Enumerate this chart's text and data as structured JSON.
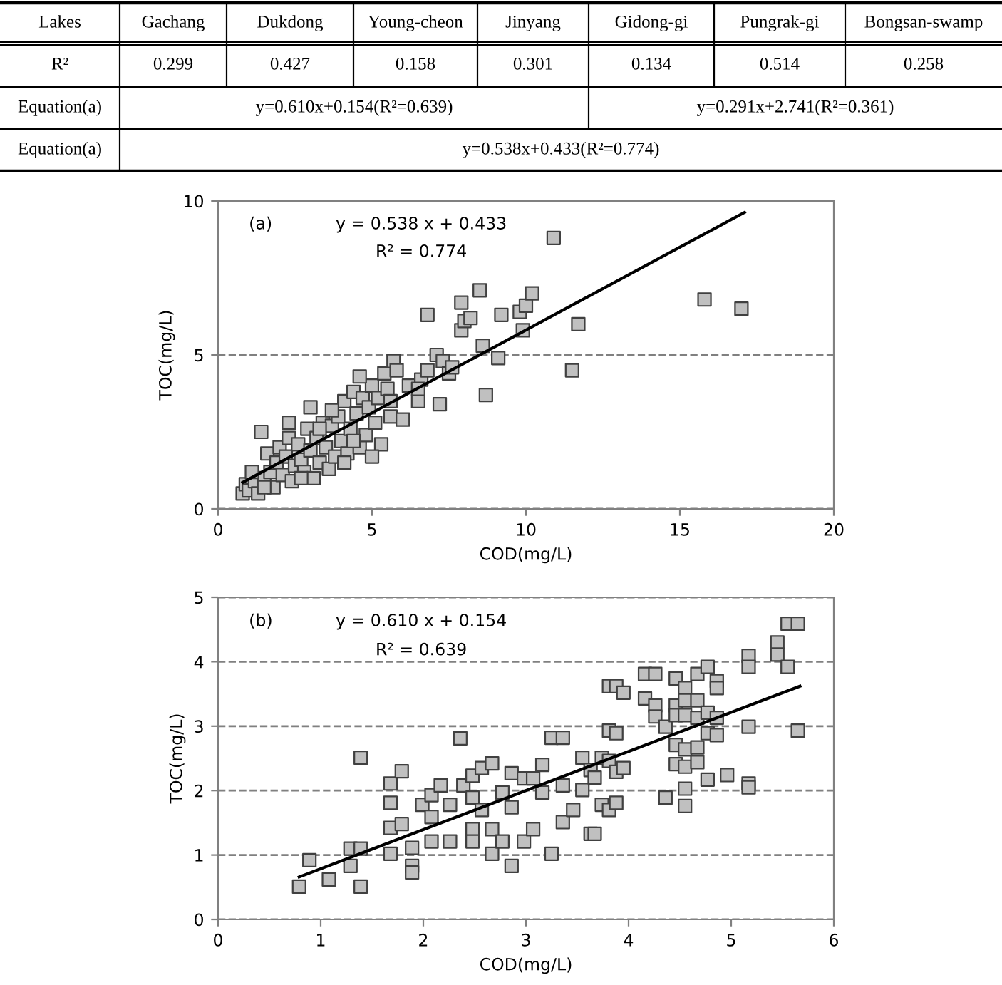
{
  "chart_data": [
    {
      "type": "other",
      "annotations": [
        "Lakes",
        "Gachang",
        "Dukdong",
        "Young-cheon",
        "Jinyang",
        "Gidong-gi",
        "Pungrak-gi",
        "Bongsan-swamp",
        "R²",
        "0.299",
        "0.427",
        "0.158",
        "0.301",
        "0.134",
        "0.514",
        "0.258",
        "Equation(a)",
        "y=0.610x+0.154(R²=0.639)",
        "y=0.291x+2.741(R²=0.361)",
        "Equation(a)",
        "y=0.538x+0.433(R²=0.774)"
      ]
    },
    {
      "type": "scatter",
      "xlabel": "COD(mg/L)",
      "ylabel": "TOC(mg/L)",
      "xlim": [
        0,
        20
      ],
      "ylim": [
        0,
        10
      ],
      "xticks": [
        0,
        5,
        10,
        15,
        20
      ],
      "yticks": [
        0,
        5,
        10
      ],
      "grid": "y",
      "annotations": [
        "(a)",
        "y = 0.538 x + 0.433",
        "R² = 0.774"
      ],
      "series": [
        {
          "type": "scatter",
          "marker": "square",
          "color": "#c0c0c0",
          "x": [
            0.8,
            0.9,
            1.0,
            1.2,
            1.3,
            1.5,
            1.4,
            1.6,
            1.7,
            1.8,
            1.9,
            2.0,
            2.1,
            2.2,
            2.3,
            2.4,
            2.5,
            2.6,
            2.7,
            2.8,
            2.9,
            3.0,
            3.1,
            3.2,
            3.3,
            3.4,
            3.5,
            3.6,
            3.7,
            3.8,
            3.9,
            4.0,
            4.1,
            4.2,
            4.3,
            4.4,
            4.5,
            4.6,
            4.7,
            4.8,
            4.9,
            5.0,
            5.1,
            5.2,
            5.3,
            5.4,
            5.5,
            5.6,
            5.7,
            5.8,
            6.0,
            6.2,
            2.3,
            1.1,
            1.5,
            2.7,
            3.3,
            3.7,
            4.1,
            4.6,
            5.0,
            3.0,
            4.4,
            5.6,
            6.5,
            6.6,
            6.8,
            7.1,
            7.3,
            7.5,
            7.6,
            6.5,
            7.2,
            6.8,
            7.9,
            8.0,
            8.2,
            7.9,
            8.5,
            8.6,
            8.7,
            9.2,
            9.1,
            9.9,
            9.8,
            10.0,
            10.2,
            10.9,
            11.5,
            11.7,
            15.8,
            17.0
          ],
          "values": [
            0.5,
            0.8,
            0.6,
            0.9,
            0.5,
            1.0,
            2.5,
            1.8,
            1.2,
            0.7,
            1.5,
            2.0,
            1.1,
            1.7,
            2.3,
            0.9,
            1.4,
            2.1,
            1.6,
            1.2,
            2.6,
            1.9,
            1.0,
            2.3,
            1.5,
            2.8,
            2.0,
            1.3,
            2.7,
            1.7,
            3.0,
            2.2,
            3.5,
            1.8,
            2.6,
            3.8,
            3.1,
            2.0,
            3.6,
            2.4,
            3.3,
            4.0,
            2.8,
            3.6,
            2.1,
            4.4,
            3.9,
            3.0,
            4.8,
            4.5,
            2.9,
            4.0,
            2.8,
            1.2,
            0.7,
            1.0,
            2.6,
            3.2,
            1.5,
            4.3,
            1.7,
            3.3,
            2.2,
            3.5,
            3.5,
            4.2,
            4.5,
            5.0,
            4.8,
            4.4,
            4.6,
            3.9,
            3.4,
            6.3,
            5.8,
            6.1,
            6.2,
            6.7,
            7.1,
            5.3,
            3.7,
            6.3,
            4.9,
            5.8,
            6.4,
            6.6,
            7.0,
            8.8,
            4.5,
            6.0,
            6.8,
            6.5
          ]
        },
        {
          "type": "line",
          "marker": "none",
          "color": "#000000",
          "x": [
            0.8,
            17.1
          ],
          "values": [
            0.86,
            9.63
          ]
        }
      ]
    },
    {
      "type": "scatter",
      "xlabel": "COD(mg/L)",
      "ylabel": "TOC(mg/L)",
      "xlim": [
        0,
        6
      ],
      "ylim": [
        0,
        5
      ],
      "xticks": [
        0,
        1,
        2,
        3,
        4,
        5,
        6
      ],
      "yticks": [
        0,
        1,
        2,
        3,
        4,
        5
      ],
      "grid": "y",
      "annotations": [
        "(b)",
        "y = 0.610 x + 0.154",
        "R² = 0.639"
      ],
      "series": [
        {
          "type": "scatter",
          "marker": "square",
          "color": "#c0c0c0",
          "x": [
            0.79,
            0.89,
            1.08,
            1.39,
            1.29,
            1.29,
            1.39,
            1.39,
            1.68,
            1.68,
            1.68,
            1.68,
            1.79,
            1.79,
            1.89,
            1.89,
            1.89,
            1.99,
            2.08,
            2.08,
            2.08,
            2.17,
            2.26,
            2.26,
            2.36,
            2.39,
            2.48,
            2.48,
            2.48,
            2.48,
            2.57,
            2.57,
            2.67,
            2.67,
            2.67,
            2.77,
            2.77,
            2.86,
            2.86,
            2.86,
            2.98,
            2.98,
            3.07,
            3.07,
            3.16,
            3.16,
            3.25,
            3.25,
            3.36,
            3.36,
            3.36,
            3.46,
            3.55,
            3.55,
            3.63,
            3.63,
            3.67,
            3.67,
            3.74,
            3.74,
            3.81,
            3.81,
            3.88,
            3.88,
            3.95,
            3.81,
            3.88,
            3.81,
            3.88,
            3.95,
            4.16,
            4.26,
            4.16,
            4.26,
            4.26,
            4.36,
            4.36,
            4.46,
            4.46,
            4.46,
            4.46,
            4.46,
            4.55,
            4.55,
            4.55,
            4.55,
            4.55,
            4.55,
            4.55,
            4.67,
            4.67,
            4.67,
            4.67,
            4.67,
            4.77,
            4.77,
            4.77,
            4.77,
            4.86,
            4.86,
            4.86,
            4.86,
            4.96,
            5.17,
            5.17,
            5.17,
            5.17,
            5.17,
            5.45,
            5.45,
            5.55,
            5.65,
            5.55,
            5.65
          ],
          "values": [
            0.51,
            0.92,
            0.62,
            0.51,
            1.1,
            0.83,
            1.1,
            2.51,
            2.11,
            1.81,
            1.42,
            1.02,
            2.3,
            1.48,
            1.11,
            0.83,
            0.73,
            1.78,
            1.93,
            1.59,
            1.21,
            2.08,
            1.78,
            1.21,
            2.81,
            2.08,
            2.23,
            1.89,
            1.4,
            1.21,
            2.35,
            1.7,
            2.42,
            1.4,
            1.02,
            1.97,
            1.21,
            2.27,
            1.74,
            0.83,
            2.19,
            1.21,
            2.19,
            1.4,
            2.4,
            1.97,
            2.82,
            1.02,
            2.82,
            2.08,
            1.51,
            1.7,
            2.51,
            2.01,
            1.33,
            2.32,
            1.33,
            2.2,
            2.51,
            1.78,
            2.46,
            1.7,
            2.29,
            1.81,
            2.35,
            3.62,
            3.62,
            2.93,
            2.89,
            3.52,
            3.81,
            3.81,
            3.43,
            3.32,
            3.15,
            2.99,
            1.89,
            3.74,
            3.32,
            3.17,
            2.71,
            2.41,
            3.59,
            3.4,
            3.17,
            2.64,
            2.37,
            2.03,
            1.76,
            3.81,
            3.4,
            3.13,
            2.67,
            2.44,
            3.92,
            3.21,
            2.89,
            2.17,
            3.7,
            3.59,
            3.13,
            2.86,
            2.24,
            4.09,
            3.92,
            2.99,
            2.11,
            2.05,
            4.3,
            4.11,
            4.59,
            4.59,
            3.92,
            2.93
          ]
        },
        {
          "type": "line",
          "marker": "none",
          "color": "#000000",
          "x": [
            0.79,
            5.67
          ],
          "values": [
            0.66,
            3.62
          ]
        }
      ]
    }
  ]
}
